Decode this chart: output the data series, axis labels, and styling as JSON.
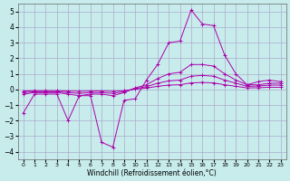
{
  "xlabel": "Windchill (Refroidissement éolien,°C)",
  "bg_color": "#c8ecec",
  "grid_color": "#aaaacc",
  "line_color": "#aa00aa",
  "xlim": [
    -0.5,
    23.5
  ],
  "ylim": [
    -4.5,
    5.5
  ],
  "yticks": [
    -4,
    -3,
    -2,
    -1,
    0,
    1,
    2,
    3,
    4,
    5
  ],
  "xticks": [
    0,
    1,
    2,
    3,
    4,
    5,
    6,
    7,
    8,
    9,
    10,
    11,
    12,
    13,
    14,
    15,
    16,
    17,
    18,
    19,
    20,
    21,
    22,
    23
  ],
  "series": [
    {
      "x": [
        0,
        1,
        2,
        3,
        4,
        5,
        6,
        7,
        8,
        9,
        10,
        11,
        12,
        13,
        14,
        15,
        16,
        17,
        18,
        19,
        20,
        21,
        22,
        23
      ],
      "y": [
        -1.5,
        -0.3,
        -0.3,
        -0.3,
        -2.0,
        -0.4,
        -0.4,
        -3.4,
        -3.7,
        -0.7,
        -0.6,
        0.6,
        1.6,
        3.0,
        3.1,
        5.1,
        4.2,
        4.1,
        2.2,
        1.0,
        0.3,
        0.5,
        0.6,
        0.5
      ]
    },
    {
      "x": [
        0,
        1,
        2,
        3,
        4,
        5,
        6,
        7,
        8,
        9,
        10,
        11,
        12,
        13,
        14,
        15,
        16,
        17,
        18,
        19,
        20,
        21,
        22,
        23
      ],
      "y": [
        -0.3,
        -0.2,
        -0.2,
        -0.2,
        -0.3,
        -0.4,
        -0.3,
        -0.3,
        -0.4,
        -0.2,
        0.1,
        0.3,
        0.7,
        1.0,
        1.1,
        1.6,
        1.6,
        1.5,
        1.0,
        0.6,
        0.3,
        0.3,
        0.4,
        0.4
      ]
    },
    {
      "x": [
        0,
        1,
        2,
        3,
        4,
        5,
        6,
        7,
        8,
        9,
        10,
        11,
        12,
        13,
        14,
        15,
        16,
        17,
        18,
        19,
        20,
        21,
        22,
        23
      ],
      "y": [
        -0.2,
        -0.15,
        -0.15,
        -0.15,
        -0.2,
        -0.25,
        -0.2,
        -0.2,
        -0.25,
        -0.15,
        0.05,
        0.18,
        0.4,
        0.55,
        0.6,
        0.85,
        0.9,
        0.85,
        0.6,
        0.4,
        0.2,
        0.22,
        0.28,
        0.28
      ]
    },
    {
      "x": [
        0,
        1,
        2,
        3,
        4,
        5,
        6,
        7,
        8,
        9,
        10,
        11,
        12,
        13,
        14,
        15,
        16,
        17,
        18,
        19,
        20,
        21,
        22,
        23
      ],
      "y": [
        -0.1,
        -0.08,
        -0.08,
        -0.08,
        -0.1,
        -0.12,
        -0.1,
        -0.1,
        -0.12,
        -0.08,
        0.02,
        0.09,
        0.2,
        0.28,
        0.3,
        0.42,
        0.45,
        0.42,
        0.3,
        0.2,
        0.1,
        0.11,
        0.14,
        0.14
      ]
    }
  ]
}
